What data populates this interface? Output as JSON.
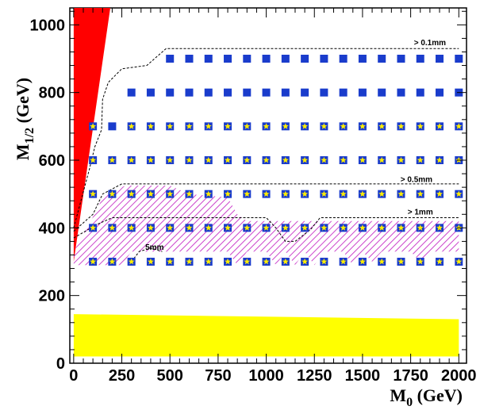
{
  "chart_data": {
    "type": "scatter",
    "title": "",
    "xlabel": "M",
    "xlabel_sub": "0",
    "xlabel_unit": " (GeV)",
    "ylabel": "M",
    "ylabel_sub": "1/2",
    "ylabel_unit": " (GeV)",
    "xlim": [
      -20,
      2040
    ],
    "ylim": [
      0,
      1050
    ],
    "xticks": [
      0,
      250,
      500,
      750,
      1000,
      1250,
      1500,
      1750,
      2000
    ],
    "xtick_labels": [
      "0",
      "250",
      "500",
      "750",
      "1000",
      "1250",
      "1500",
      "1750",
      "2000"
    ],
    "yticks": [
      0,
      200,
      400,
      600,
      800,
      1000
    ],
    "ytick_labels": [
      "0",
      "200",
      "400",
      "600",
      "800",
      "1000"
    ],
    "grid": false,
    "colors": {
      "square": "#1a3ccc",
      "star": "#ffee00",
      "excluded_red": "#ff0000",
      "excluded_yellow": "#ffff00",
      "hatch": "#cc44cc",
      "contour": "#000000"
    },
    "series": [
      {
        "marker": "square",
        "points": [
          [
            500,
            900
          ],
          [
            600,
            900
          ],
          [
            700,
            900
          ],
          [
            800,
            900
          ],
          [
            900,
            900
          ],
          [
            1000,
            900
          ],
          [
            1100,
            900
          ],
          [
            1200,
            900
          ],
          [
            1300,
            900
          ],
          [
            1400,
            900
          ],
          [
            1500,
            900
          ],
          [
            1600,
            900
          ],
          [
            1700,
            900
          ],
          [
            1800,
            900
          ],
          [
            1900,
            900
          ],
          [
            2000,
            900
          ],
          [
            300,
            800
          ],
          [
            400,
            800
          ],
          [
            500,
            800
          ],
          [
            600,
            800
          ],
          [
            700,
            800
          ],
          [
            800,
            800
          ],
          [
            900,
            800
          ],
          [
            1000,
            800
          ],
          [
            1100,
            800
          ],
          [
            1200,
            800
          ],
          [
            1300,
            800
          ],
          [
            1400,
            800
          ],
          [
            1500,
            800
          ],
          [
            1600,
            800
          ],
          [
            1700,
            800
          ],
          [
            1800,
            800
          ],
          [
            1900,
            800
          ],
          [
            2000,
            800
          ],
          [
            200,
            700
          ]
        ]
      },
      {
        "marker": "square-star",
        "points": [
          [
            100,
            700
          ],
          [
            300,
            700
          ],
          [
            400,
            700
          ],
          [
            500,
            700
          ],
          [
            600,
            700
          ],
          [
            700,
            700
          ],
          [
            800,
            700
          ],
          [
            900,
            700
          ],
          [
            1000,
            700
          ],
          [
            1100,
            700
          ],
          [
            1200,
            700
          ],
          [
            1300,
            700
          ],
          [
            1400,
            700
          ],
          [
            1500,
            700
          ],
          [
            1600,
            700
          ],
          [
            1700,
            700
          ],
          [
            1800,
            700
          ],
          [
            1900,
            700
          ],
          [
            2000,
            700
          ],
          [
            100,
            600
          ],
          [
            200,
            600
          ],
          [
            300,
            600
          ],
          [
            400,
            600
          ],
          [
            500,
            600
          ],
          [
            600,
            600
          ],
          [
            700,
            600
          ],
          [
            800,
            600
          ],
          [
            900,
            600
          ],
          [
            1000,
            600
          ],
          [
            1100,
            600
          ],
          [
            1200,
            600
          ],
          [
            1300,
            600
          ],
          [
            1400,
            600
          ],
          [
            1500,
            600
          ],
          [
            1600,
            600
          ],
          [
            1700,
            600
          ],
          [
            1800,
            600
          ],
          [
            1900,
            600
          ],
          [
            2000,
            600
          ],
          [
            100,
            500
          ],
          [
            200,
            500
          ],
          [
            300,
            500
          ],
          [
            400,
            500
          ],
          [
            500,
            500
          ],
          [
            600,
            500
          ],
          [
            700,
            500
          ],
          [
            800,
            500
          ],
          [
            900,
            500
          ],
          [
            1000,
            500
          ],
          [
            1100,
            500
          ],
          [
            1200,
            500
          ],
          [
            1300,
            500
          ],
          [
            1400,
            500
          ],
          [
            1500,
            500
          ],
          [
            1600,
            500
          ],
          [
            1700,
            500
          ],
          [
            1800,
            500
          ],
          [
            1900,
            500
          ],
          [
            2000,
            500
          ],
          [
            100,
            400
          ],
          [
            200,
            400
          ],
          [
            300,
            400
          ],
          [
            400,
            400
          ],
          [
            500,
            400
          ],
          [
            600,
            400
          ],
          [
            700,
            400
          ],
          [
            800,
            400
          ],
          [
            900,
            400
          ],
          [
            1000,
            400
          ],
          [
            1100,
            400
          ],
          [
            1200,
            400
          ],
          [
            1300,
            400
          ],
          [
            1400,
            400
          ],
          [
            1500,
            400
          ],
          [
            1600,
            400
          ],
          [
            1700,
            400
          ],
          [
            1800,
            400
          ],
          [
            1900,
            400
          ],
          [
            2000,
            400
          ],
          [
            100,
            300
          ],
          [
            200,
            300
          ],
          [
            300,
            300
          ],
          [
            400,
            300
          ],
          [
            500,
            300
          ],
          [
            600,
            300
          ],
          [
            700,
            300
          ],
          [
            800,
            300
          ],
          [
            900,
            300
          ],
          [
            1000,
            300
          ],
          [
            1100,
            300
          ],
          [
            1200,
            300
          ],
          [
            1300,
            300
          ],
          [
            1400,
            300
          ],
          [
            1500,
            300
          ],
          [
            1600,
            300
          ],
          [
            1700,
            300
          ],
          [
            1800,
            300
          ],
          [
            1900,
            300
          ],
          [
            2000,
            300
          ]
        ]
      }
    ],
    "regions": [
      {
        "fill": "red",
        "points": [
          [
            0,
            300
          ],
          [
            0,
            1050
          ],
          [
            190,
            1050
          ]
        ]
      },
      {
        "fill": "yellow",
        "points": [
          [
            0,
            20
          ],
          [
            0,
            145
          ],
          [
            2000,
            130
          ],
          [
            2000,
            20
          ]
        ]
      },
      {
        "fill": "hatch",
        "points": [
          [
            0,
            290
          ],
          [
            0,
            330
          ],
          [
            80,
            410
          ],
          [
            160,
            500
          ],
          [
            270,
            525
          ],
          [
            500,
            525
          ],
          [
            600,
            500
          ],
          [
            800,
            490
          ],
          [
            850,
            440
          ],
          [
            900,
            420
          ],
          [
            1100,
            420
          ],
          [
            1300,
            420
          ],
          [
            1500,
            420
          ],
          [
            2000,
            420
          ],
          [
            2000,
            350
          ],
          [
            2000,
            330
          ],
          [
            1850,
            330
          ],
          [
            1800,
            300
          ],
          [
            1750,
            330
          ],
          [
            1600,
            330
          ],
          [
            1550,
            300
          ],
          [
            1500,
            330
          ],
          [
            1450,
            290
          ],
          [
            1400,
            330
          ],
          [
            1300,
            330
          ],
          [
            1250,
            290
          ],
          [
            1200,
            330
          ],
          [
            1150,
            290
          ],
          [
            1100,
            330
          ],
          [
            1050,
            290
          ],
          [
            1000,
            330
          ],
          [
            900,
            330
          ],
          [
            850,
            290
          ],
          [
            800,
            330
          ],
          [
            300,
            330
          ],
          [
            250,
            290
          ]
        ]
      }
    ],
    "contours": [
      {
        "label": "> 0.1mm",
        "label_at": [
          1850,
          940
        ],
        "points": [
          [
            0,
            400
          ],
          [
            80,
            570
          ],
          [
            110,
            640
          ],
          [
            145,
            690
          ],
          [
            150,
            780
          ],
          [
            180,
            830
          ],
          [
            250,
            870
          ],
          [
            380,
            880
          ],
          [
            480,
            930
          ],
          [
            2000,
            930
          ]
        ]
      },
      {
        "label": "> 0.5mm",
        "label_at": [
          1780,
          535
        ],
        "points": [
          [
            0,
            390
          ],
          [
            100,
            440
          ],
          [
            150,
            500
          ],
          [
            250,
            530
          ],
          [
            2000,
            530
          ]
        ]
      },
      {
        "label": "> 1mm",
        "label_at": [
          1800,
          440
        ],
        "points": [
          [
            0,
            370
          ],
          [
            120,
            410
          ],
          [
            200,
            430
          ],
          [
            1000,
            430
          ],
          [
            1050,
            400
          ],
          [
            1100,
            360
          ],
          [
            1150,
            360
          ],
          [
            1230,
            395
          ],
          [
            1280,
            430
          ],
          [
            2000,
            430
          ]
        ]
      },
      {
        "label": "5mm",
        "label_at": [
          420,
          335
        ],
        "points": [
          [
            300,
            300
          ],
          [
            340,
            330
          ],
          [
            400,
            340
          ],
          [
            460,
            330
          ]
        ]
      }
    ]
  }
}
